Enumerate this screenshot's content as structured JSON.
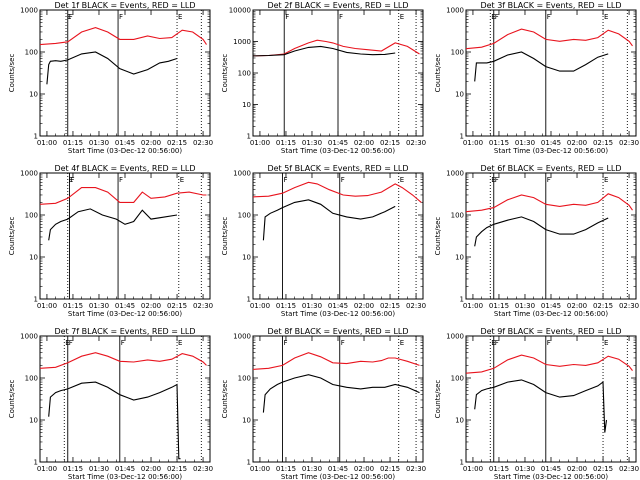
{
  "figure": {
    "ylabel": "Counts/sec",
    "xlabel": "Start Time (03-Dec-12 00:56:00)",
    "x_ticks": [
      "01:00",
      "01:15",
      "01:30",
      "01:45",
      "02:00",
      "02:15",
      "02:30"
    ],
    "y_ticks": [
      "1",
      "10",
      "100",
      "1000"
    ],
    "marker_labels": [
      "E",
      "F",
      "F",
      "E"
    ],
    "colors": {
      "events": "#000000",
      "lld": "#e8141e"
    }
  },
  "chart_data": [
    {
      "type": "line",
      "title": "Det 1f BLACK = Events, RED = LLD",
      "ylog": true,
      "ylim": [
        1,
        1000
      ],
      "xlim": [
        "00:56",
        "02:34"
      ],
      "xlabel": "Start Time (03-Dec-12 00:56:00)",
      "ylabel": "Counts/sec",
      "markers": [
        {
          "t": "01:11",
          "label": "E",
          "style": "dotted"
        },
        {
          "t": "01:12",
          "label": "F",
          "style": "solid"
        },
        {
          "t": "01:41",
          "label": "F",
          "style": "solid"
        },
        {
          "t": "02:15",
          "label": "E",
          "style": "dotted"
        },
        {
          "t": "02:29",
          "label": "",
          "style": "dotted"
        }
      ],
      "series": [
        {
          "name": "RED = LLD",
          "x": [
            "00:56",
            "01:05",
            "01:12",
            "01:20",
            "01:28",
            "01:35",
            "01:42",
            "01:50",
            "01:58",
            "02:05",
            "02:12",
            "02:18",
            "02:24",
            "02:30",
            "02:32"
          ],
          "values": [
            150,
            160,
            175,
            300,
            380,
            300,
            200,
            200,
            240,
            210,
            220,
            330,
            300,
            200,
            150
          ]
        },
        {
          "name": "BLACK = Events",
          "x": [
            "01:00",
            "01:01",
            "01:02",
            "01:05",
            "01:08",
            "01:12",
            "01:20",
            "01:28",
            "01:35",
            "01:42",
            "01:50",
            "01:58",
            "02:05",
            "02:10",
            "02:15"
          ],
          "values": [
            17,
            50,
            60,
            62,
            60,
            65,
            90,
            100,
            70,
            40,
            30,
            38,
            55,
            60,
            70
          ]
        }
      ]
    },
    {
      "type": "line",
      "title": "Det 2f BLACK = Events, RED = LLD",
      "ylog": true,
      "ylim": [
        1,
        10000
      ],
      "xlim": [
        "00:56",
        "02:34"
      ],
      "xlabel": "Start Time (03-Dec-12 00:56:00)",
      "ylabel": "Counts/sec",
      "markers": [
        {
          "t": "01:14",
          "label": "F",
          "style": "solid"
        },
        {
          "t": "01:45",
          "label": "F",
          "style": "solid"
        },
        {
          "t": "02:20",
          "label": "E",
          "style": "dotted"
        },
        {
          "t": "02:30",
          "label": "",
          "style": "dotted"
        }
      ],
      "series": [
        {
          "name": "RED = LLD",
          "x": [
            "00:56",
            "01:05",
            "01:14",
            "01:20",
            "01:28",
            "01:33",
            "01:38",
            "01:42",
            "01:48",
            "01:55",
            "02:02",
            "02:10",
            "02:18",
            "02:25",
            "02:32"
          ],
          "values": [
            350,
            360,
            400,
            600,
            900,
            1100,
            1000,
            900,
            700,
            600,
            550,
            500,
            900,
            700,
            400
          ]
        },
        {
          "name": "BLACK = Events",
          "x": [
            "00:56",
            "01:05",
            "01:14",
            "01:20",
            "01:28",
            "01:35",
            "01:42",
            "01:50",
            "01:58",
            "02:05",
            "02:12",
            "02:18"
          ],
          "values": [
            350,
            360,
            380,
            500,
            650,
            700,
            600,
            450,
            400,
            380,
            390,
            430
          ]
        }
      ]
    },
    {
      "type": "line",
      "title": "Det 3f BLACK = Events, RED = LLD",
      "ylog": true,
      "ylim": [
        1,
        1000
      ],
      "xlim": [
        "00:56",
        "02:34"
      ],
      "xlabel": "Start Time (03-Dec-12 00:56:00)",
      "ylabel": "Counts/sec",
      "markers": [
        {
          "t": "01:10",
          "label": "E",
          "style": "dotted"
        },
        {
          "t": "01:12",
          "label": "F",
          "style": "solid"
        },
        {
          "t": "01:42",
          "label": "F",
          "style": "solid"
        },
        {
          "t": "02:15",
          "label": "E",
          "style": "dotted"
        },
        {
          "t": "02:29",
          "label": "",
          "style": "dotted"
        }
      ],
      "series": [
        {
          "name": "RED = LLD",
          "x": [
            "00:56",
            "01:05",
            "01:12",
            "01:20",
            "01:28",
            "01:35",
            "01:42",
            "01:50",
            "01:58",
            "02:05",
            "02:12",
            "02:18",
            "02:24",
            "02:30",
            "02:32"
          ],
          "values": [
            120,
            130,
            160,
            260,
            350,
            300,
            200,
            180,
            200,
            190,
            220,
            330,
            270,
            180,
            140
          ]
        },
        {
          "name": "BLACK = Events",
          "x": [
            "01:01",
            "01:02",
            "01:05",
            "01:08",
            "01:12",
            "01:20",
            "01:28",
            "01:35",
            "01:42",
            "01:50",
            "01:58",
            "02:05",
            "02:12",
            "02:18"
          ],
          "values": [
            20,
            55,
            55,
            55,
            60,
            85,
            100,
            70,
            45,
            35,
            35,
            50,
            75,
            90
          ]
        }
      ]
    },
    {
      "type": "line",
      "title": "Det 4f BLACK = Events, RED = LLD",
      "ylog": true,
      "ylim": [
        1,
        1000
      ],
      "xlim": [
        "00:56",
        "02:34"
      ],
      "xlabel": "Start Time (03-Dec-12 00:56:00)",
      "ylabel": "Counts/sec",
      "markers": [
        {
          "t": "01:12",
          "label": "E",
          "style": "dotted"
        },
        {
          "t": "01:13",
          "label": "F",
          "style": "solid"
        },
        {
          "t": "01:41",
          "label": "F",
          "style": "solid"
        },
        {
          "t": "02:16",
          "label": "E",
          "style": "dotted"
        },
        {
          "t": "02:29",
          "label": "",
          "style": "dotted"
        }
      ],
      "series": [
        {
          "name": "RED = LLD",
          "x": [
            "00:56",
            "01:05",
            "01:12",
            "01:20",
            "01:28",
            "01:35",
            "01:42",
            "01:50",
            "01:55",
            "02:00",
            "02:08",
            "02:15",
            "02:22",
            "02:30",
            "02:32"
          ],
          "values": [
            180,
            190,
            250,
            450,
            450,
            350,
            200,
            200,
            350,
            250,
            270,
            330,
            350,
            300,
            300
          ]
        },
        {
          "name": "BLACK = Events",
          "x": [
            "01:01",
            "01:02",
            "01:05",
            "01:08",
            "01:12",
            "01:18",
            "01:25",
            "01:32",
            "01:40",
            "01:45",
            "01:50",
            "01:55",
            "02:00",
            "02:08",
            "02:15"
          ],
          "values": [
            25,
            45,
            60,
            70,
            80,
            120,
            140,
            100,
            80,
            60,
            70,
            130,
            80,
            90,
            100
          ]
        }
      ]
    },
    {
      "type": "line",
      "title": "Det 5f BLACK = Events, RED = LLD",
      "ylog": true,
      "ylim": [
        1,
        1000
      ],
      "xlim": [
        "00:56",
        "02:34"
      ],
      "xlabel": "Start Time (03-Dec-12 00:56:00)",
      "ylabel": "Counts/sec",
      "markers": [
        {
          "t": "01:13",
          "label": "F",
          "style": "solid"
        },
        {
          "t": "01:46",
          "label": "F",
          "style": "solid"
        },
        {
          "t": "02:20",
          "label": "E",
          "style": "dotted"
        },
        {
          "t": "02:30",
          "label": "",
          "style": "dotted"
        }
      ],
      "series": [
        {
          "name": "RED = LLD",
          "x": [
            "00:56",
            "01:05",
            "01:13",
            "01:20",
            "01:28",
            "01:33",
            "01:40",
            "01:48",
            "01:55",
            "02:02",
            "02:10",
            "02:18",
            "02:22",
            "02:28",
            "02:33"
          ],
          "values": [
            270,
            280,
            330,
            450,
            600,
            550,
            400,
            300,
            280,
            290,
            350,
            550,
            450,
            300,
            200
          ]
        },
        {
          "name": "BLACK = Events",
          "x": [
            "01:02",
            "01:03",
            "01:06",
            "01:10",
            "01:13",
            "01:20",
            "01:28",
            "01:35",
            "01:42",
            "01:50",
            "01:58",
            "02:05",
            "02:12",
            "02:18"
          ],
          "values": [
            25,
            90,
            110,
            130,
            150,
            200,
            230,
            180,
            110,
            90,
            80,
            90,
            120,
            160
          ]
        }
      ]
    },
    {
      "type": "line",
      "title": "Det 6f BLACK = Events, RED = LLD",
      "ylog": true,
      "ylim": [
        1,
        1000
      ],
      "xlim": [
        "00:56",
        "02:34"
      ],
      "xlabel": "Start Time (03-Dec-12 00:56:00)",
      "ylabel": "Counts/sec",
      "markers": [
        {
          "t": "01:10",
          "label": "E",
          "style": "dotted"
        },
        {
          "t": "01:12",
          "label": "F",
          "style": "solid"
        },
        {
          "t": "01:42",
          "label": "F",
          "style": "solid"
        },
        {
          "t": "02:15",
          "label": "E",
          "style": "dotted"
        },
        {
          "t": "02:29",
          "label": "",
          "style": "dotted"
        }
      ],
      "series": [
        {
          "name": "RED = LLD",
          "x": [
            "00:56",
            "01:05",
            "01:12",
            "01:20",
            "01:28",
            "01:35",
            "01:42",
            "01:50",
            "01:58",
            "02:05",
            "02:12",
            "02:18",
            "02:24",
            "02:30",
            "02:32"
          ],
          "values": [
            120,
            130,
            150,
            230,
            300,
            260,
            180,
            160,
            180,
            170,
            200,
            320,
            260,
            170,
            130
          ]
        },
        {
          "name": "BLACK = Events",
          "x": [
            "01:01",
            "01:02",
            "01:05",
            "01:08",
            "01:12",
            "01:20",
            "01:28",
            "01:35",
            "01:42",
            "01:50",
            "01:58",
            "02:05",
            "02:12",
            "02:18"
          ],
          "values": [
            18,
            30,
            40,
            50,
            60,
            75,
            90,
            70,
            45,
            35,
            35,
            45,
            65,
            85
          ]
        }
      ]
    },
    {
      "type": "line",
      "title": "Det 7f BLACK = Events, RED = LLD",
      "ylog": true,
      "ylim": [
        1,
        1000
      ],
      "xlim": [
        "00:56",
        "02:34"
      ],
      "xlabel": "Start Time (03-Dec-12 00:56:00)",
      "ylabel": "Counts/sec",
      "markers": [
        {
          "t": "01:10",
          "label": "E",
          "style": "dotted"
        },
        {
          "t": "01:12",
          "label": "F",
          "style": "solid"
        },
        {
          "t": "01:42",
          "label": "F",
          "style": "solid"
        },
        {
          "t": "02:15",
          "label": "E",
          "style": "dotted"
        },
        {
          "t": "02:29",
          "label": "",
          "style": "dotted"
        }
      ],
      "series": [
        {
          "name": "RED = LLD",
          "x": [
            "00:56",
            "01:05",
            "01:12",
            "01:20",
            "01:28",
            "01:35",
            "01:42",
            "01:50",
            "01:58",
            "02:05",
            "02:12",
            "02:18",
            "02:24",
            "02:30",
            "02:32"
          ],
          "values": [
            170,
            180,
            230,
            330,
            400,
            330,
            250,
            240,
            270,
            250,
            280,
            380,
            330,
            240,
            200
          ]
        },
        {
          "name": "BLACK = Events",
          "x": [
            "01:01",
            "01:02",
            "01:05",
            "01:08",
            "01:12",
            "01:20",
            "01:28",
            "01:35",
            "01:42",
            "01:50",
            "01:58",
            "02:05",
            "02:12",
            "02:15",
            "02:16",
            "02:17"
          ],
          "values": [
            12,
            35,
            45,
            50,
            55,
            75,
            80,
            60,
            40,
            30,
            35,
            45,
            60,
            70,
            1.2,
            1.2
          ]
        }
      ]
    },
    {
      "type": "line",
      "title": "Det 8f BLACK = Events, RED = LLD",
      "ylog": true,
      "ylim": [
        1,
        1000
      ],
      "xlim": [
        "00:56",
        "02:34"
      ],
      "xlabel": "Start Time (03-Dec-12 00:56:00)",
      "ylabel": "Counts/sec",
      "markers": [
        {
          "t": "01:13",
          "label": "F",
          "style": "solid"
        },
        {
          "t": "01:46",
          "label": "F",
          "style": "solid"
        },
        {
          "t": "02:20",
          "label": "E",
          "style": "dotted"
        },
        {
          "t": "02:30",
          "label": "",
          "style": "dotted"
        }
      ],
      "series": [
        {
          "name": "RED = LLD",
          "x": [
            "00:56",
            "01:05",
            "01:13",
            "01:20",
            "01:28",
            "01:35",
            "01:42",
            "01:50",
            "01:58",
            "02:05",
            "02:10",
            "02:14",
            "02:18",
            "02:25",
            "02:32"
          ],
          "values": [
            160,
            170,
            200,
            300,
            400,
            320,
            230,
            220,
            250,
            240,
            260,
            300,
            300,
            250,
            200
          ]
        },
        {
          "name": "BLACK = Events",
          "x": [
            "01:02",
            "01:03",
            "01:06",
            "01:10",
            "01:13",
            "01:20",
            "01:28",
            "01:35",
            "01:42",
            "01:50",
            "01:58",
            "02:05",
            "02:12",
            "02:18",
            "02:25",
            "02:32"
          ],
          "values": [
            15,
            40,
            55,
            70,
            80,
            100,
            120,
            100,
            70,
            60,
            55,
            60,
            60,
            70,
            60,
            45
          ]
        }
      ]
    },
    {
      "type": "line",
      "title": "Det 9f BLACK = Events, RED = LLD",
      "ylog": true,
      "ylim": [
        1,
        1000
      ],
      "xlim": [
        "00:56",
        "02:34"
      ],
      "xlabel": "Start Time (03-Dec-12 00:56:00)",
      "ylabel": "Counts/sec",
      "markers": [
        {
          "t": "01:10",
          "label": "E",
          "style": "dotted"
        },
        {
          "t": "01:12",
          "label": "F",
          "style": "solid"
        },
        {
          "t": "01:42",
          "label": "F",
          "style": "solid"
        },
        {
          "t": "02:15",
          "label": "E",
          "style": "dotted"
        },
        {
          "t": "02:29",
          "label": "",
          "style": "dotted"
        }
      ],
      "series": [
        {
          "name": "RED = LLD",
          "x": [
            "00:56",
            "01:05",
            "01:12",
            "01:20",
            "01:28",
            "01:35",
            "01:42",
            "01:50",
            "01:58",
            "02:05",
            "02:12",
            "02:18",
            "02:24",
            "02:30",
            "02:32"
          ],
          "values": [
            130,
            140,
            170,
            270,
            350,
            300,
            210,
            190,
            210,
            200,
            230,
            330,
            280,
            190,
            150
          ]
        },
        {
          "name": "BLACK = Events",
          "x": [
            "01:01",
            "01:02",
            "01:05",
            "01:08",
            "01:12",
            "01:20",
            "01:28",
            "01:35",
            "01:42",
            "01:50",
            "01:58",
            "02:05",
            "02:12",
            "02:15",
            "02:16",
            "02:17"
          ],
          "values": [
            18,
            40,
            50,
            55,
            60,
            80,
            90,
            70,
            45,
            35,
            38,
            50,
            65,
            80,
            5,
            10
          ]
        }
      ]
    }
  ]
}
